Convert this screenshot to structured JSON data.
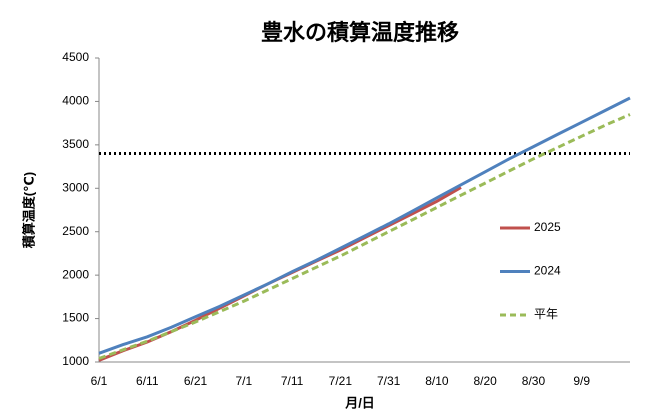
{
  "chart_data": {
    "type": "line",
    "title": "豊水の積算温度推移",
    "x_label": "月/日",
    "y_label": "積算温度(℃)",
    "categories": [
      "6/1",
      null,
      "6/11",
      null,
      "6/21",
      null,
      "7/1",
      null,
      "7/11",
      null,
      "7/21",
      null,
      "7/31",
      null,
      "8/10",
      null,
      "8/20",
      null,
      "8/30",
      null,
      "9/9",
      null,
      null
    ],
    "series": [
      {
        "name": "2025",
        "color": "#c0504d",
        "dashed": false,
        "values": [
          1020,
          1130,
          1230,
          1350,
          1480,
          1620,
          1760,
          1900,
          2030,
          2160,
          2290,
          2430,
          2570,
          2710,
          2850,
          3010,
          null,
          null,
          null,
          null,
          null,
          null,
          null
        ]
      },
      {
        "name": "2024",
        "color": "#4f81bd",
        "dashed": false,
        "values": [
          1100,
          1200,
          1290,
          1400,
          1520,
          1640,
          1770,
          1900,
          2040,
          2170,
          2310,
          2450,
          2590,
          2740,
          2890,
          3040,
          3190,
          3340,
          3480,
          3620,
          3760,
          3900,
          4040
        ]
      },
      {
        "name": "平年",
        "color": "#9bbb59",
        "dashed": true,
        "values": [
          1040,
          1140,
          1240,
          1350,
          1460,
          1580,
          1700,
          1830,
          1960,
          2090,
          2220,
          2360,
          2500,
          2640,
          2780,
          2920,
          3060,
          3200,
          3340,
          3470,
          3600,
          3730,
          3850
        ]
      }
    ],
    "reference_line": 3400,
    "ylim": [
      1000,
      4500
    ],
    "yticks": [
      1000,
      1500,
      2000,
      2500,
      3000,
      3500,
      4000,
      4500
    ],
    "grid": false
  }
}
